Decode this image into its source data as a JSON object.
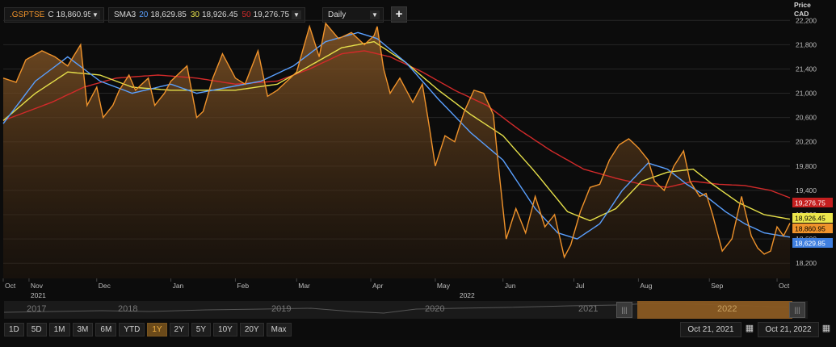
{
  "toolbar": {
    "symbol": ".GSPTSE",
    "close_prefix": "C",
    "close_value": "18,860.95",
    "indicator": "SMA3",
    "sma_periods": [
      "20",
      "30",
      "50"
    ],
    "sma_values": [
      "18,629.85",
      "18,926.45",
      "19,276.75"
    ],
    "interval": "Daily",
    "add_label": "+"
  },
  "axis_header": {
    "line1": "Price",
    "line2": "CAD"
  },
  "nav": {
    "years": [
      "2017",
      "2018",
      "2019",
      "2020",
      "2021",
      "2022"
    ]
  },
  "ranges": [
    "1D",
    "5D",
    "1M",
    "3M",
    "6M",
    "YTD",
    "1Y",
    "2Y",
    "5Y",
    "10Y",
    "20Y",
    "Max"
  ],
  "active_range": "1Y",
  "date_from": "Oct 21, 2021",
  "date_to": "Oct 21, 2022",
  "chart_data": {
    "type": "area",
    "currency": "CAD",
    "y_ticks": [
      18200,
      18600,
      19000,
      19400,
      19800,
      20200,
      20600,
      21000,
      21400,
      21800,
      22200
    ],
    "y_tick_labels": [
      "18,200",
      "18,600",
      "19,000",
      "19,400",
      "19,800",
      "20,200",
      "20,600",
      "21,000",
      "21,400",
      "21,800",
      "22,200"
    ],
    "ylim": [
      17950,
      22350
    ],
    "x_months": [
      {
        "label": "Oct",
        "year": "",
        "i": 0
      },
      {
        "label": "Nov",
        "year": "2021",
        "i": 8
      },
      {
        "label": "Dec",
        "year": "",
        "i": 29
      },
      {
        "label": "Jan",
        "year": "",
        "i": 52
      },
      {
        "label": "Feb",
        "year": "",
        "i": 72
      },
      {
        "label": "Mar",
        "year": "",
        "i": 91
      },
      {
        "label": "Apr",
        "year": "",
        "i": 114
      },
      {
        "label": "May",
        "year": "",
        "i": 134
      },
      {
        "label": "",
        "year": "2022",
        "i": 141
      },
      {
        "label": "Jun",
        "year": "",
        "i": 155
      },
      {
        "label": "Jul",
        "year": "",
        "i": 177
      },
      {
        "label": "Aug",
        "year": "",
        "i": 197
      },
      {
        "label": "Sep",
        "year": "",
        "i": 219
      },
      {
        "label": "Oct",
        "year": "",
        "i": 240
      }
    ],
    "series": [
      {
        "name": ".GSPTSE",
        "color": "#f0932b",
        "kind": "price",
        "anchors": [
          [
            0,
            21250
          ],
          [
            4,
            21180
          ],
          [
            7,
            21550
          ],
          [
            12,
            21700
          ],
          [
            16,
            21600
          ],
          [
            20,
            21450
          ],
          [
            24,
            21800
          ],
          [
            26,
            20800
          ],
          [
            29,
            21100
          ],
          [
            31,
            20600
          ],
          [
            34,
            20800
          ],
          [
            36,
            21050
          ],
          [
            39,
            21300
          ],
          [
            41,
            21050
          ],
          [
            45,
            21250
          ],
          [
            47,
            20800
          ],
          [
            50,
            21000
          ],
          [
            52,
            21200
          ],
          [
            54,
            21300
          ],
          [
            57,
            21450
          ],
          [
            60,
            20600
          ],
          [
            62,
            20700
          ],
          [
            65,
            21250
          ],
          [
            68,
            21650
          ],
          [
            72,
            21250
          ],
          [
            75,
            21150
          ],
          [
            79,
            21700
          ],
          [
            82,
            20950
          ],
          [
            85,
            21050
          ],
          [
            88,
            21200
          ],
          [
            91,
            21350
          ],
          [
            95,
            22100
          ],
          [
            98,
            21600
          ],
          [
            100,
            22150
          ],
          [
            104,
            21900
          ],
          [
            108,
            22000
          ],
          [
            112,
            21800
          ],
          [
            115,
            21950
          ],
          [
            116,
            22100
          ],
          [
            118,
            21400
          ],
          [
            120,
            21000
          ],
          [
            123,
            21250
          ],
          [
            127,
            20850
          ],
          [
            130,
            21150
          ],
          [
            132,
            20500
          ],
          [
            134,
            19800
          ],
          [
            137,
            20300
          ],
          [
            140,
            20200
          ],
          [
            143,
            20700
          ],
          [
            146,
            21050
          ],
          [
            149,
            21000
          ],
          [
            152,
            20650
          ],
          [
            154,
            19600
          ],
          [
            156,
            18600
          ],
          [
            159,
            19100
          ],
          [
            162,
            18700
          ],
          [
            165,
            19300
          ],
          [
            168,
            18800
          ],
          [
            171,
            19000
          ],
          [
            174,
            18300
          ],
          [
            176,
            18500
          ],
          [
            179,
            19050
          ],
          [
            182,
            19450
          ],
          [
            185,
            19500
          ],
          [
            188,
            19900
          ],
          [
            191,
            20150
          ],
          [
            194,
            20250
          ],
          [
            197,
            20100
          ],
          [
            200,
            19900
          ],
          [
            202,
            19550
          ],
          [
            205,
            19400
          ],
          [
            208,
            19800
          ],
          [
            211,
            20050
          ],
          [
            213,
            19550
          ],
          [
            216,
            19300
          ],
          [
            218,
            19350
          ],
          [
            220,
            19000
          ],
          [
            223,
            18400
          ],
          [
            226,
            18600
          ],
          [
            229,
            19300
          ],
          [
            232,
            18650
          ],
          [
            234,
            18450
          ],
          [
            236,
            18350
          ],
          [
            238,
            18400
          ],
          [
            240,
            18800
          ],
          [
            242,
            18650
          ],
          [
            244,
            18860
          ]
        ],
        "values_note": "approximate daily closes read from chart"
      },
      {
        "name": "SMA 20",
        "color": "#5aa0ff",
        "kind": "sma",
        "anchors": [
          [
            0,
            20500
          ],
          [
            10,
            21200
          ],
          [
            20,
            21600
          ],
          [
            30,
            21200
          ],
          [
            40,
            21000
          ],
          [
            52,
            21150
          ],
          [
            60,
            21000
          ],
          [
            70,
            21100
          ],
          [
            80,
            21200
          ],
          [
            90,
            21450
          ],
          [
            100,
            21850
          ],
          [
            110,
            22000
          ],
          [
            116,
            21900
          ],
          [
            125,
            21500
          ],
          [
            135,
            20900
          ],
          [
            145,
            20350
          ],
          [
            155,
            19900
          ],
          [
            165,
            19100
          ],
          [
            172,
            18700
          ],
          [
            178,
            18600
          ],
          [
            185,
            18850
          ],
          [
            192,
            19400
          ],
          [
            200,
            19850
          ],
          [
            206,
            19750
          ],
          [
            212,
            19500
          ],
          [
            218,
            19300
          ],
          [
            224,
            19050
          ],
          [
            230,
            18850
          ],
          [
            236,
            18700
          ],
          [
            244,
            18630
          ]
        ]
      },
      {
        "name": "SMA 30",
        "color": "#e6e04a",
        "kind": "sma",
        "anchors": [
          [
            0,
            20550
          ],
          [
            10,
            21000
          ],
          [
            20,
            21350
          ],
          [
            30,
            21300
          ],
          [
            40,
            21100
          ],
          [
            52,
            21050
          ],
          [
            60,
            21050
          ],
          [
            72,
            21050
          ],
          [
            85,
            21150
          ],
          [
            95,
            21450
          ],
          [
            105,
            21750
          ],
          [
            115,
            21850
          ],
          [
            125,
            21500
          ],
          [
            135,
            21050
          ],
          [
            145,
            20650
          ],
          [
            155,
            20300
          ],
          [
            165,
            19700
          ],
          [
            175,
            19050
          ],
          [
            182,
            18900
          ],
          [
            190,
            19100
          ],
          [
            198,
            19550
          ],
          [
            206,
            19700
          ],
          [
            214,
            19750
          ],
          [
            220,
            19500
          ],
          [
            228,
            19200
          ],
          [
            236,
            19000
          ],
          [
            244,
            18926
          ]
        ]
      },
      {
        "name": "SMA 50",
        "color": "#d22a2a",
        "kind": "sma",
        "anchors": [
          [
            0,
            20550
          ],
          [
            15,
            20850
          ],
          [
            25,
            21100
          ],
          [
            35,
            21250
          ],
          [
            48,
            21300
          ],
          [
            60,
            21250
          ],
          [
            72,
            21150
          ],
          [
            85,
            21200
          ],
          [
            95,
            21400
          ],
          [
            105,
            21650
          ],
          [
            112,
            21700
          ],
          [
            120,
            21600
          ],
          [
            130,
            21350
          ],
          [
            140,
            21050
          ],
          [
            150,
            20800
          ],
          [
            160,
            20400
          ],
          [
            170,
            20050
          ],
          [
            180,
            19750
          ],
          [
            190,
            19600
          ],
          [
            198,
            19500
          ],
          [
            206,
            19450
          ],
          [
            214,
            19550
          ],
          [
            222,
            19500
          ],
          [
            230,
            19480
          ],
          [
            238,
            19400
          ],
          [
            244,
            19277
          ]
        ]
      }
    ],
    "last_labels": [
      {
        "value": "19,276.75",
        "color": "#c41f1f",
        "text_color": "#ffffff"
      },
      {
        "value": "18,926.45",
        "color": "#ece64c",
        "text_color": "#000000"
      },
      {
        "value": "18,860.95",
        "color": "#f0932b",
        "text_color": "#000000"
      },
      {
        "value": "18,629.85",
        "color": "#3f7fe0",
        "text_color": "#ffffff"
      }
    ]
  }
}
